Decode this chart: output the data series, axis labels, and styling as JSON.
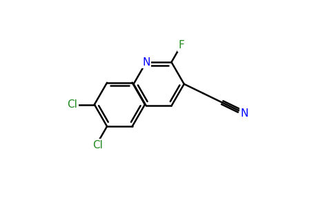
{
  "bg_color": "#ffffff",
  "atom_colors": {
    "C": "#000000",
    "N": "#0000ff",
    "F": "#228B22",
    "Cl": "#228B22"
  },
  "bond_color": "#000000",
  "bond_width": 1.8,
  "dpi": 100,
  "figsize": [
    4.84,
    3.0
  ],
  "xlim": [
    0,
    9.68
  ],
  "ylim": [
    0,
    6.0
  ]
}
